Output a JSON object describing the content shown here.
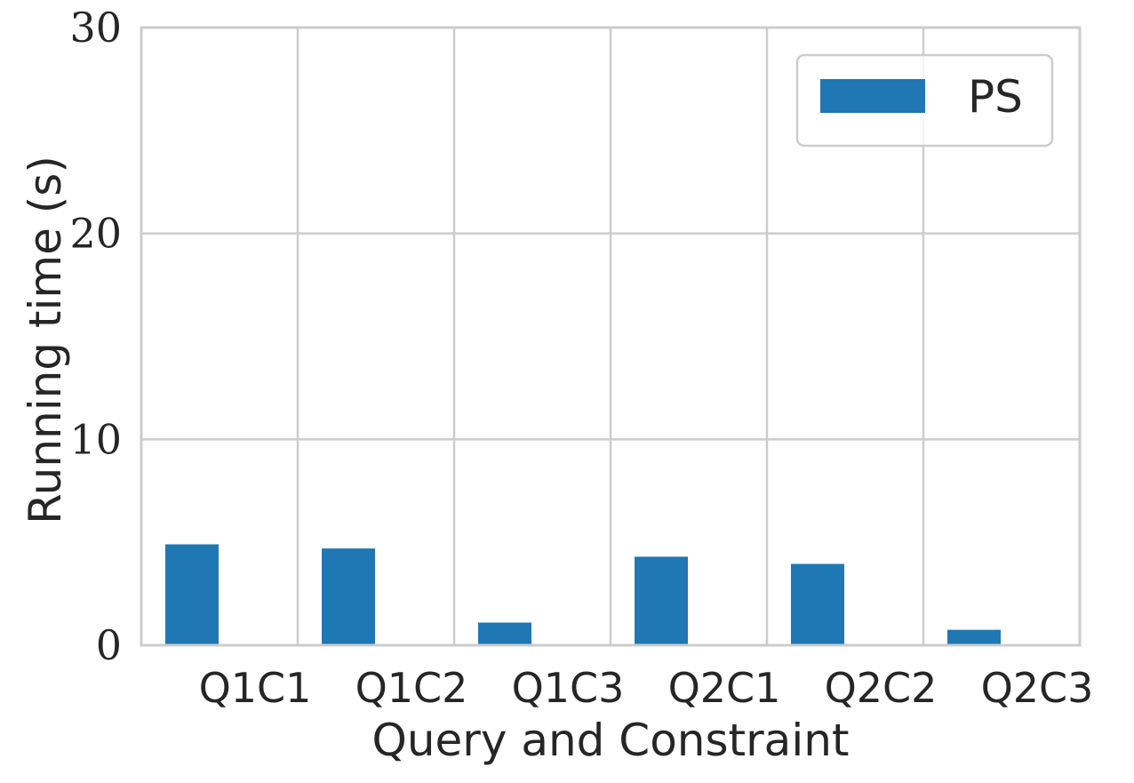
{
  "chart_data": {
    "type": "bar",
    "categories": [
      "Q1C1",
      "Q1C2",
      "Q1C3",
      "Q2C1",
      "Q2C2",
      "Q2C3"
    ],
    "series": [
      {
        "name": "PS",
        "values": [
          4.9,
          4.7,
          1.1,
          4.3,
          3.95,
          0.75
        ],
        "color": "#1f77b4"
      }
    ],
    "xlabel": "Query and Constraint",
    "ylabel": "Running time (s)",
    "ylim": [
      0,
      30
    ],
    "yticks": [
      0,
      10,
      20,
      30
    ],
    "grid": true,
    "legend_position": "top-right",
    "colors": {
      "grid": "#cccccc",
      "spine": "#cccccc",
      "text": "#262626"
    }
  }
}
